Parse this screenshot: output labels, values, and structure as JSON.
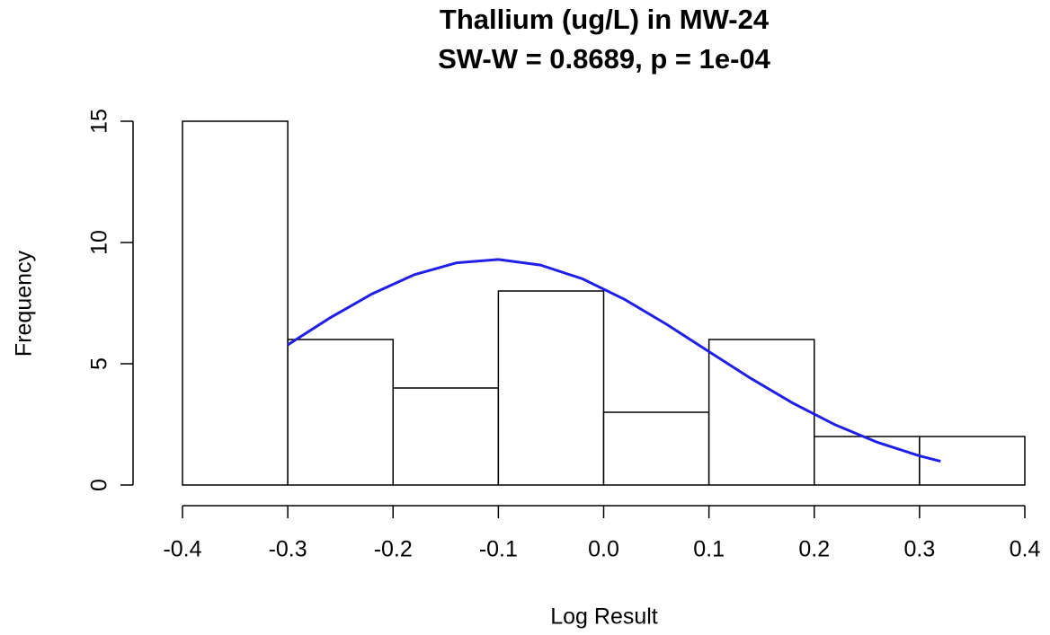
{
  "chart_data": {
    "type": "histogram",
    "title": "Thallium (ug/L) in MW-24",
    "subtitle": "SW-W = 0.8689, p = 1e-04",
    "xlabel": "Log Result",
    "ylabel": "Frequency",
    "bins": [
      -0.4,
      -0.3,
      -0.2,
      -0.1,
      0,
      0.1,
      0.2,
      0.3,
      0.4
    ],
    "counts": [
      15,
      6,
      4,
      8,
      3,
      6,
      2,
      2
    ],
    "bar_color": "#ffffff",
    "edge_color": "#000000",
    "curve": {
      "color": "#1f1fe6",
      "x": [
        -0.3,
        -0.26,
        -0.22,
        -0.18,
        -0.14,
        -0.1,
        -0.06,
        -0.02,
        0.02,
        0.06,
        0.1,
        0.14,
        0.18,
        0.22,
        0.26,
        0.3,
        0.32
      ],
      "values": [
        5.78,
        6.89,
        7.88,
        8.67,
        9.16,
        9.3,
        9.07,
        8.5,
        7.65,
        6.62,
        5.5,
        4.39,
        3.37,
        2.48,
        1.76,
        1.2,
        0.98
      ]
    },
    "xlim": [
      -0.4,
      0.4
    ],
    "xticks": [
      -0.4,
      -0.3,
      -0.2,
      -0.1,
      {
        "value": 0,
        "label": "0.0"
      },
      0.1,
      0.2,
      0.3,
      0.4
    ],
    "ylim": [
      0,
      15
    ],
    "yticks": [
      0,
      5,
      10,
      15
    ]
  }
}
